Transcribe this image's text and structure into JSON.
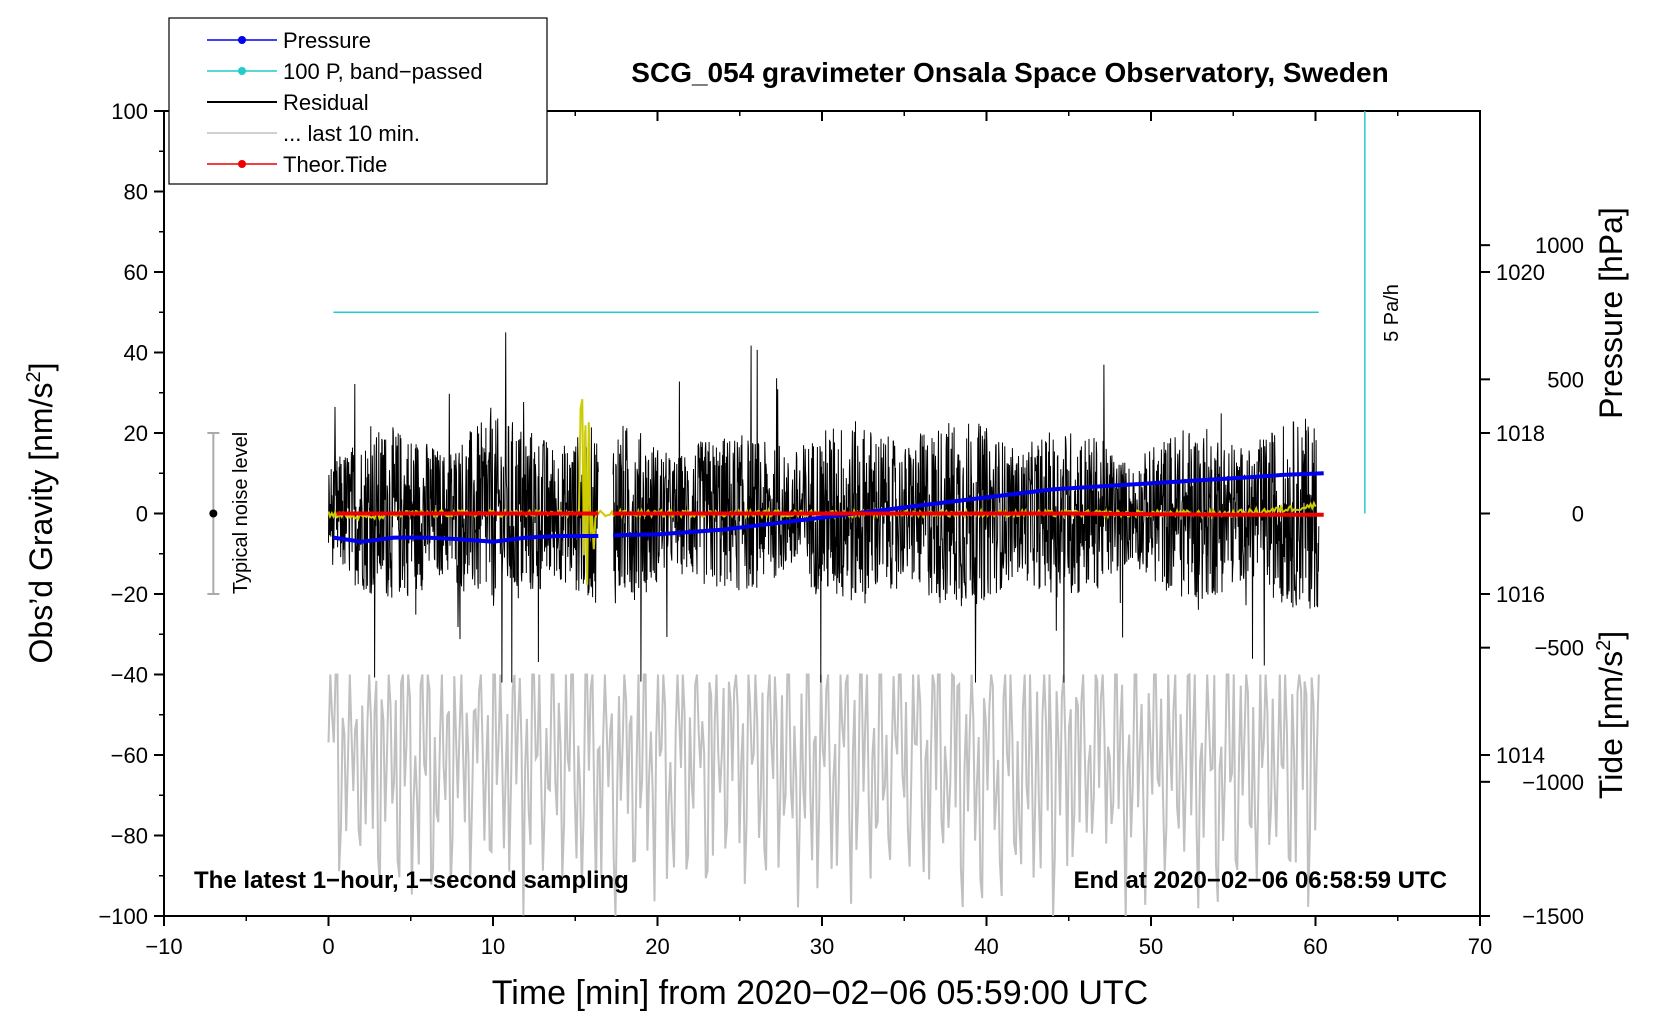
{
  "chart_data": {
    "type": "line",
    "title": "SCG_054 gravimeter Onsala Space Observatory, Sweden",
    "xlabel": "Time [min] from 2020−02−06 05:59:00 UTC",
    "ylabel_left": "Obs’d Gravity [nm/s²]",
    "ylabel_left_main": "Obs’d Gravity [nm/s",
    "ylabel_left_sup": "2",
    "ylabel_left_close": "]",
    "ylabel_right_pressure": "Pressure [hPa]",
    "ylabel_right_tide": "Tide [nm/s²]",
    "ylabel_right_tide_main": "Tide [nm/s",
    "ylabel_right_tide_sup": "2",
    "ylabel_right_tide_close": "]",
    "xlim": [
      -10,
      70
    ],
    "ylim": [
      -100,
      100
    ],
    "pressure_range_hPa": [
      1012,
      1022
    ],
    "tide_range_nms2": [
      -1500,
      1500
    ],
    "x_ticks": [
      "−10",
      "0",
      "10",
      "20",
      "30",
      "40",
      "50",
      "60",
      "70"
    ],
    "y_ticks_left": [
      "100",
      "80",
      "60",
      "40",
      "20",
      "0",
      "−20",
      "−40",
      "−60",
      "−80",
      "−100"
    ],
    "y_ticks_pressure": [
      "1020",
      "1018",
      "1016",
      "1014"
    ],
    "y_ticks_tide": [
      "1000",
      "500",
      "0",
      "−500",
      "−1000",
      "−1500"
    ],
    "annotations": {
      "bottom_left": "The latest 1−hour, 1−second sampling",
      "bottom_right": "End at 2020−02−06 06:58:59 UTC",
      "noise_label": "Typical noise level",
      "scale_label": "5 Pa/h"
    },
    "noise_bar": {
      "x": -7,
      "center": 0,
      "half_range": 20
    },
    "scale_bar": {
      "x": 63,
      "y_top": 100,
      "y_bottom": 0
    },
    "legend": {
      "position": "top-left",
      "entries": [
        {
          "label": "Pressure",
          "color": "#0000ee",
          "marker": true
        },
        {
          "label": "100 P, band−passed",
          "color": "#22cccc",
          "marker": true
        },
        {
          "label": "Residual",
          "color": "#000000",
          "marker": false
        },
        {
          "label": "... last 10 min.",
          "color": "#c0c0c0",
          "marker": false
        },
        {
          "label": "Theor.Tide",
          "color": "#ee0000",
          "marker": true
        }
      ]
    },
    "series": [
      {
        "name": "Pressure",
        "axis": "pressure",
        "color": "#0000ee",
        "gap": [
          16.4,
          17.3
        ],
        "x": [
          0.3,
          2,
          4,
          6,
          8,
          10,
          12,
          14,
          16.4,
          17.3,
          20,
          24,
          28,
          32,
          36,
          40,
          44,
          48,
          52,
          56,
          58,
          60.5
        ],
        "y": [
          1016.7,
          1016.65,
          1016.7,
          1016.7,
          1016.68,
          1016.65,
          1016.7,
          1016.72,
          1016.72,
          1016.73,
          1016.74,
          1016.8,
          1016.9,
          1017.0,
          1017.1,
          1017.2,
          1017.3,
          1017.35,
          1017.4,
          1017.45,
          1017.48,
          1017.5
        ]
      },
      {
        "name": "100 P, band−passed",
        "axis": "left",
        "color": "#22cccc",
        "x": [
          0.3,
          60.2
        ],
        "y": [
          50,
          50
        ]
      },
      {
        "name": "Residual",
        "axis": "left",
        "color": "#000000",
        "gap": [
          16.4,
          17.3
        ],
        "x_range": [
          0,
          60.2
        ],
        "amplitude_nms2": 15,
        "peak_range": [
          -42,
          45
        ]
      },
      {
        "name": "Residual smoothed",
        "axis": "left",
        "color": "#cccc00",
        "x": [
          0,
          2,
          5,
          10,
          15,
          20,
          25,
          30,
          35,
          40,
          45,
          50,
          55,
          58,
          60
        ],
        "y": [
          0,
          -1,
          0,
          0,
          0,
          0,
          0,
          0,
          0,
          0,
          0,
          0,
          0,
          1,
          2
        ]
      },
      {
        "name": "... last 10 min.",
        "axis": "left",
        "color": "#c0c0c0",
        "x_range": [
          0,
          60.2
        ],
        "center": -60,
        "peak_range": [
          -100,
          -40
        ]
      },
      {
        "name": "Theor.Tide",
        "axis": "tide",
        "color": "#ee0000",
        "gap": [
          16.4,
          17.3
        ],
        "x": [
          0.5,
          16.4,
          17.3,
          30,
          45,
          55,
          60.5
        ],
        "y": [
          0,
          0,
          0,
          0,
          0,
          -5,
          -5
        ]
      }
    ]
  }
}
